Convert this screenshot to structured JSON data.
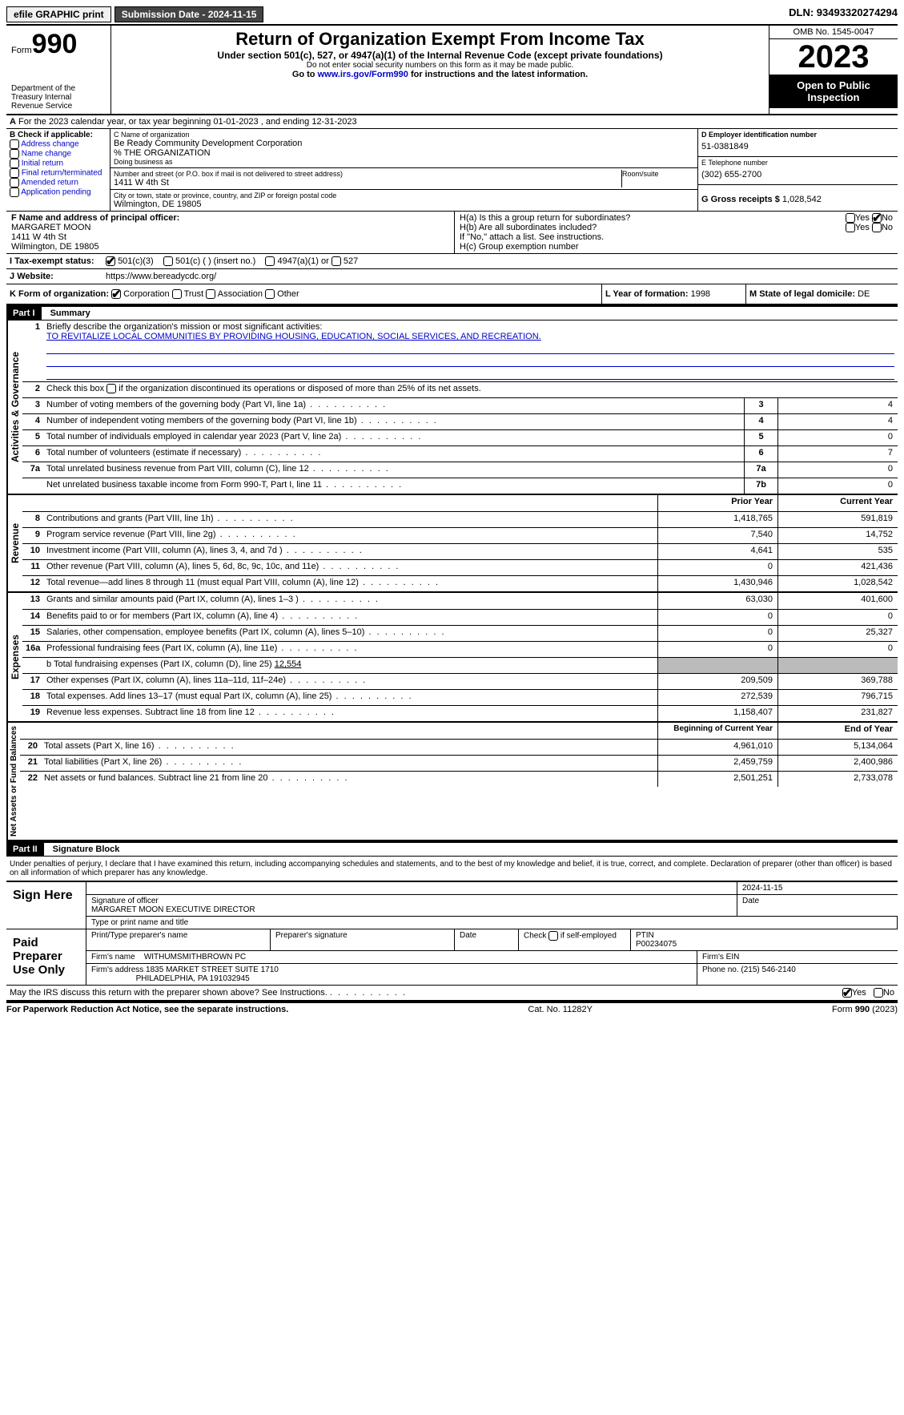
{
  "topbar": {
    "efile": "efile GRAPHIC print",
    "submission": "Submission Date - 2024-11-15",
    "dln": "DLN: 93493320274294"
  },
  "header": {
    "form_prefix": "Form",
    "form_num": "990",
    "dept": "Department of the Treasury Internal Revenue Service",
    "title": "Return of Organization Exempt From Income Tax",
    "under": "Under section 501(c), 527, or 4947(a)(1) of the Internal Revenue Code (except private foundations)",
    "ssn": "Do not enter social security numbers on this form as it may be made public.",
    "goto_pre": "Go to ",
    "goto_link": "www.irs.gov/Form990",
    "goto_post": " for instructions and the latest information.",
    "omb": "OMB No. 1545-0047",
    "year": "2023",
    "open": "Open to Public Inspection"
  },
  "rowA": "For the 2023 calendar year, or tax year beginning 01-01-2023   , and ending 12-31-2023",
  "colB": {
    "heading": "B Check if applicable:",
    "items": [
      "Address change",
      "Name change",
      "Initial return",
      "Final return/terminated",
      "Amended return",
      "Application pending"
    ]
  },
  "colC": {
    "name_lbl": "C Name of organization",
    "name1": "Be Ready Community Development Corporation",
    "name2": "% THE ORGANIZATION",
    "dba_lbl": "Doing business as",
    "addr_lbl": "Number and street (or P.O. box if mail is not delivered to street address)",
    "addr": "1411 W 4th St",
    "room_lbl": "Room/suite",
    "city_lbl": "City or town, state or province, country, and ZIP or foreign postal code",
    "city": "Wilmington, DE  19805"
  },
  "colD": {
    "ein_lbl": "D Employer identification number",
    "ein": "51-0381849",
    "tel_lbl": "E Telephone number",
    "tel": "(302) 655-2700",
    "gross_lbl": "G Gross receipts $",
    "gross": "1,028,542"
  },
  "rowF": {
    "lbl": "F  Name and address of principal officer:",
    "n": "MARGARET MOON",
    "a1": "1411 W 4th St",
    "a2": "Wilmington, DE  19805"
  },
  "rowH": {
    "a": "H(a)  Is this a group return for subordinates?",
    "b": "H(b)  Are all subordinates included?",
    "b_note": "If \"No,\" attach a list. See instructions.",
    "c": "H(c)  Group exemption number"
  },
  "rowI": {
    "lbl": "Tax-exempt status:",
    "o1": "501(c)(3)",
    "o2": "501(c) (  ) (insert no.)",
    "o3": "4947(a)(1) or",
    "o4": "527"
  },
  "rowJ": {
    "lbl": "Website:",
    "val": "https://www.bereadycdc.org/"
  },
  "rowK": {
    "lbl": "K Form of organization:",
    "opts": [
      "Corporation",
      "Trust",
      "Association",
      "Other"
    ],
    "yof_lbl": "L Year of formation:",
    "yof": "1998",
    "state_lbl": "M State of legal domicile:",
    "state": "DE"
  },
  "part1": {
    "hdr": "Part I",
    "title": "Summary"
  },
  "gov": {
    "side": "Activities & Governance",
    "l1_lbl": "Briefly describe the organization's mission or most significant activities:",
    "l1_val": "TO REVITALIZE LOCAL COMMUNITIES BY PROVIDING HOUSING, EDUCATION, SOCIAL SERVICES, AND RECREATION.",
    "l2": "Check this box      if the organization discontinued its operations or disposed of more than 25% of its net assets.",
    "rows": [
      {
        "n": "3",
        "d": "Number of voting members of the governing body (Part VI, line 1a)",
        "bn": "3",
        "v": "4"
      },
      {
        "n": "4",
        "d": "Number of independent voting members of the governing body (Part VI, line 1b)",
        "bn": "4",
        "v": "4"
      },
      {
        "n": "5",
        "d": "Total number of individuals employed in calendar year 2023 (Part V, line 2a)",
        "bn": "5",
        "v": "0"
      },
      {
        "n": "6",
        "d": "Total number of volunteers (estimate if necessary)",
        "bn": "6",
        "v": "7"
      },
      {
        "n": "7a",
        "d": "Total unrelated business revenue from Part VIII, column (C), line 12",
        "bn": "7a",
        "v": "0"
      },
      {
        "n": "",
        "d": "Net unrelated business taxable income from Form 990-T, Part I, line 11",
        "bn": "7b",
        "v": "0"
      }
    ]
  },
  "rev": {
    "side": "Revenue",
    "hdr_prior": "Prior Year",
    "hdr_curr": "Current Year",
    "rows": [
      {
        "n": "8",
        "d": "Contributions and grants (Part VIII, line 1h)",
        "p": "1,418,765",
        "c": "591,819"
      },
      {
        "n": "9",
        "d": "Program service revenue (Part VIII, line 2g)",
        "p": "7,540",
        "c": "14,752"
      },
      {
        "n": "10",
        "d": "Investment income (Part VIII, column (A), lines 3, 4, and 7d )",
        "p": "4,641",
        "c": "535"
      },
      {
        "n": "11",
        "d": "Other revenue (Part VIII, column (A), lines 5, 6d, 8c, 9c, 10c, and 11e)",
        "p": "0",
        "c": "421,436"
      },
      {
        "n": "12",
        "d": "Total revenue—add lines 8 through 11 (must equal Part VIII, column (A), line 12)",
        "p": "1,430,946",
        "c": "1,028,542"
      }
    ]
  },
  "exp": {
    "side": "Expenses",
    "rows": [
      {
        "n": "13",
        "d": "Grants and similar amounts paid (Part IX, column (A), lines 1–3 )",
        "p": "63,030",
        "c": "401,600"
      },
      {
        "n": "14",
        "d": "Benefits paid to or for members (Part IX, column (A), line 4)",
        "p": "0",
        "c": "0"
      },
      {
        "n": "15",
        "d": "Salaries, other compensation, employee benefits (Part IX, column (A), lines 5–10)",
        "p": "0",
        "c": "25,327"
      },
      {
        "n": "16a",
        "d": "Professional fundraising fees (Part IX, column (A), line 11e)",
        "p": "0",
        "c": "0"
      }
    ],
    "b_lbl": "b  Total fundraising expenses (Part IX, column (D), line 25)",
    "b_val": "12,554",
    "rows2": [
      {
        "n": "17",
        "d": "Other expenses (Part IX, column (A), lines 11a–11d, 11f–24e)",
        "p": "209,509",
        "c": "369,788"
      },
      {
        "n": "18",
        "d": "Total expenses. Add lines 13–17 (must equal Part IX, column (A), line 25)",
        "p": "272,539",
        "c": "796,715"
      },
      {
        "n": "19",
        "d": "Revenue less expenses. Subtract line 18 from line 12",
        "p": "1,158,407",
        "c": "231,827"
      }
    ]
  },
  "net": {
    "side": "Net Assets or Fund Balances",
    "hdr_begin": "Beginning of Current Year",
    "hdr_end": "End of Year",
    "rows": [
      {
        "n": "20",
        "d": "Total assets (Part X, line 16)",
        "p": "4,961,010",
        "c": "5,134,064"
      },
      {
        "n": "21",
        "d": "Total liabilities (Part X, line 26)",
        "p": "2,459,759",
        "c": "2,400,986"
      },
      {
        "n": "22",
        "d": "Net assets or fund balances. Subtract line 21 from line 20",
        "p": "2,501,251",
        "c": "2,733,078"
      }
    ]
  },
  "part2": {
    "hdr": "Part II",
    "title": "Signature Block"
  },
  "penalty": "Under penalties of perjury, I declare that I have examined this return, including accompanying schedules and statements, and to the best of my knowledge and belief, it is true, correct, and complete. Declaration of preparer (other than officer) is based on all information of which preparer has any knowledge.",
  "sign": {
    "here": "Sign Here",
    "date": "2024-11-15",
    "sig_lbl": "Signature of officer",
    "name": "MARGARET MOON  EXECUTIVE DIRECTOR",
    "name_lbl": "Type or print name and title",
    "date_lbl": "Date"
  },
  "paid": {
    "lbl": "Paid Preparer Use Only",
    "h1": "Print/Type preparer's name",
    "h2": "Preparer's signature",
    "h3": "Date",
    "h4": "Check       if self-employed",
    "h5": "PTIN",
    "ptin": "P00234075",
    "firm_lbl": "Firm's name",
    "firm": "WITHUMSMITHBROWN PC",
    "ein_lbl": "Firm's EIN",
    "addr_lbl": "Firm's address",
    "addr1": "1835 MARKET STREET SUITE 1710",
    "addr2": "PHILADELPHIA, PA  191032945",
    "phone_lbl": "Phone no.",
    "phone": "(215) 546-2140"
  },
  "discuss": "May the IRS discuss this return with the preparer shown above? See Instructions.",
  "footer": {
    "l": "For Paperwork Reduction Act Notice, see the separate instructions.",
    "m": "Cat. No. 11282Y",
    "r": "Form 990 (2023)"
  },
  "yesno": {
    "yes": "Yes",
    "no": "No"
  }
}
